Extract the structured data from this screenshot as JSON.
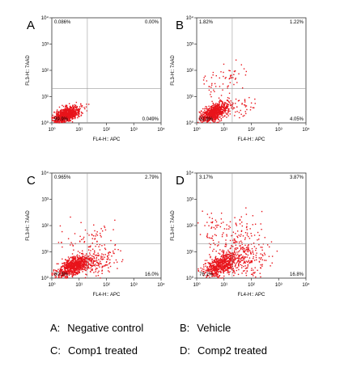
{
  "chart_data": [
    {
      "type": "scatter",
      "panel": "A",
      "xlabel": "FL4-H:: APC",
      "ylabel": "FL3-H:: 7AAD",
      "x_scale": "log",
      "y_scale": "log",
      "xlim": [
        1,
        10000
      ],
      "ylim": [
        1,
        10000
      ],
      "x_ticks": [
        "10⁰",
        "10¹",
        "10²",
        "10³",
        "10⁴"
      ],
      "y_ticks": [
        "10⁰",
        "10¹",
        "10²",
        "10³",
        "10⁴"
      ],
      "gate": {
        "x": 20,
        "y": 20
      },
      "quadrants": {
        "upper_left": "0.086%",
        "upper_right": "0.00%",
        "lower_left": "99.9%",
        "lower_right": "0.049%"
      },
      "point_color": "#e8141b"
    },
    {
      "type": "scatter",
      "panel": "B",
      "xlabel": "FL4-H:: APC",
      "ylabel": "FL3-H:: 7AAD",
      "x_scale": "log",
      "y_scale": "log",
      "xlim": [
        1,
        10000
      ],
      "ylim": [
        1,
        10000
      ],
      "x_ticks": [
        "10⁰",
        "10¹",
        "10²",
        "10³",
        "10⁴"
      ],
      "y_ticks": [
        "10⁰",
        "10¹",
        "10²",
        "10³",
        "10⁴"
      ],
      "gate": {
        "x": 20,
        "y": 20
      },
      "quadrants": {
        "upper_left": "1.82%",
        "upper_right": "1.22%",
        "lower_left": "92.9%",
        "lower_right": "4.05%"
      },
      "point_color": "#e8141b"
    },
    {
      "type": "scatter",
      "panel": "C",
      "xlabel": "FL4-H:: APC",
      "ylabel": "FL3-H:: 7AAD",
      "x_scale": "log",
      "y_scale": "log",
      "xlim": [
        1,
        10000
      ],
      "ylim": [
        1,
        10000
      ],
      "x_ticks": [
        "10⁰",
        "10¹",
        "10²",
        "10³",
        "10⁴"
      ],
      "y_ticks": [
        "10⁰",
        "10¹",
        "10²",
        "10³",
        "10⁴"
      ],
      "gate": {
        "x": 20,
        "y": 20
      },
      "quadrants": {
        "upper_left": "0.965%",
        "upper_right": "2.79%",
        "lower_left": "80.3%",
        "lower_right": "16.0%"
      },
      "point_color": "#e8141b"
    },
    {
      "type": "scatter",
      "panel": "D",
      "xlabel": "FL4-H:: APC",
      "ylabel": "FL3-H:: 7AAD",
      "x_scale": "log",
      "y_scale": "log",
      "xlim": [
        1,
        10000
      ],
      "ylim": [
        1,
        10000
      ],
      "x_ticks": [
        "10⁰",
        "10¹",
        "10²",
        "10³",
        "10⁴"
      ],
      "y_ticks": [
        "10⁰",
        "10¹",
        "10²",
        "10³",
        "10⁴"
      ],
      "gate": {
        "x": 20,
        "y": 20
      },
      "quadrants": {
        "upper_left": "3.17%",
        "upper_right": "3.87%",
        "lower_left": "76.1%",
        "lower_right": "16.8%"
      },
      "point_color": "#e8141b"
    }
  ],
  "legend": [
    {
      "key": "A:",
      "text": "Negative control"
    },
    {
      "key": "B:",
      "text": "Vehicle"
    },
    {
      "key": "C:",
      "text": "Comp1 treated"
    },
    {
      "key": "D:",
      "text": "Comp2 treated"
    }
  ]
}
